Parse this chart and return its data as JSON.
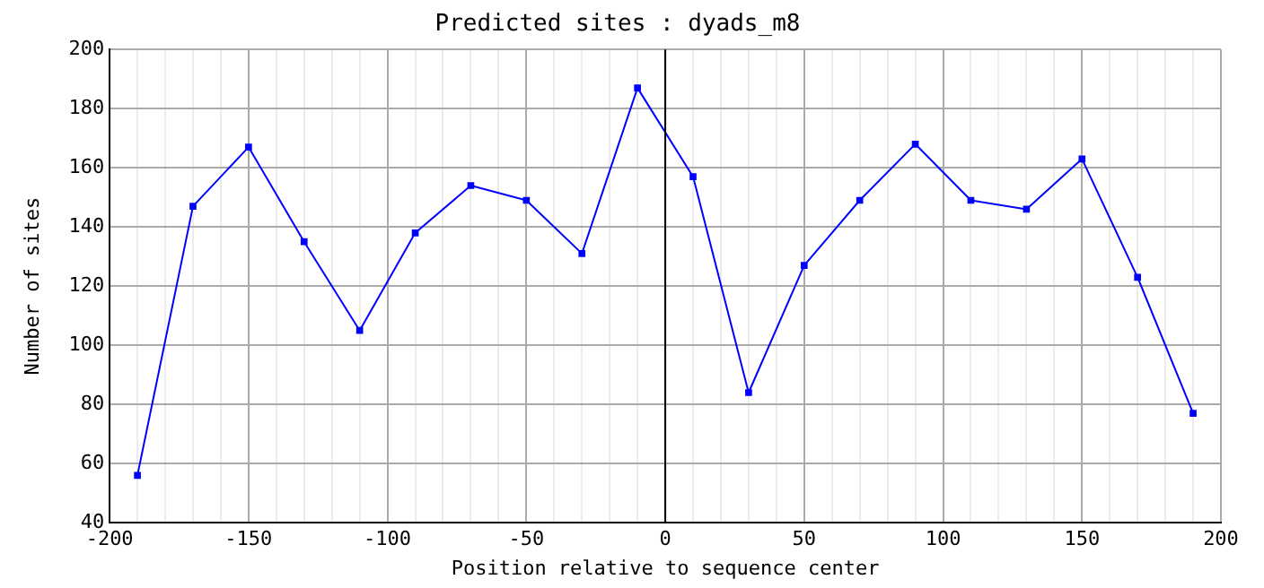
{
  "chart_data": {
    "type": "line",
    "title": "Predicted sites : dyads_m8",
    "xlabel": "Position relative to sequence center",
    "ylabel": "Number of sites",
    "x": [
      -190,
      -170,
      -150,
      -130,
      -110,
      -90,
      -70,
      -50,
      -30,
      -10,
      10,
      30,
      50,
      70,
      90,
      110,
      130,
      150,
      170,
      190
    ],
    "series": [
      {
        "color": "#0000ff",
        "values": [
          56,
          147,
          167,
          135,
          105,
          138,
          154,
          149,
          131,
          187,
          157,
          84,
          127,
          149,
          168,
          149,
          146,
          163,
          123,
          77
        ]
      }
    ],
    "xlim": [
      -200,
      200
    ],
    "xticks": [
      -200,
      {
        "value": -190,
        "label": null
      },
      {
        "value": -180,
        "label": null
      },
      {
        "value": -170,
        "label": null
      },
      {
        "value": -160,
        "label": null
      },
      -150,
      {
        "value": -140,
        "label": null
      },
      {
        "value": -130,
        "label": null
      },
      {
        "value": -120,
        "label": null
      },
      {
        "value": -110,
        "label": null
      },
      -100,
      {
        "value": -90,
        "label": null
      },
      {
        "value": -80,
        "label": null
      },
      {
        "value": -70,
        "label": null
      },
      {
        "value": -60,
        "label": null
      },
      -50,
      {
        "value": -40,
        "label": null
      },
      {
        "value": -30,
        "label": null
      },
      {
        "value": -20,
        "label": null
      },
      {
        "value": -10,
        "label": null
      },
      0,
      {
        "value": 10,
        "label": null
      },
      {
        "value": 20,
        "label": null
      },
      {
        "value": 30,
        "label": null
      },
      {
        "value": 40,
        "label": null
      },
      50,
      {
        "value": 60,
        "label": null
      },
      {
        "value": 70,
        "label": null
      },
      {
        "value": 80,
        "label": null
      },
      {
        "value": 90,
        "label": null
      },
      100,
      {
        "value": 110,
        "label": null
      },
      {
        "value": 120,
        "label": null
      },
      {
        "value": 130,
        "label": null
      },
      {
        "value": 140,
        "label": null
      },
      150,
      {
        "value": 160,
        "label": null
      },
      {
        "value": 170,
        "label": null
      },
      {
        "value": 180,
        "label": null
      },
      {
        "value": 190,
        "label": null
      },
      200
    ],
    "ylim": [
      40,
      200
    ],
    "yticks": [
      40,
      60,
      80,
      100,
      120,
      140,
      160,
      180,
      200
    ],
    "ref_lines": [
      {
        "axis": "x",
        "value": 0,
        "color": "#000000"
      }
    ],
    "grid": true,
    "legend": false,
    "marker": "square",
    "line_style": "solid"
  }
}
